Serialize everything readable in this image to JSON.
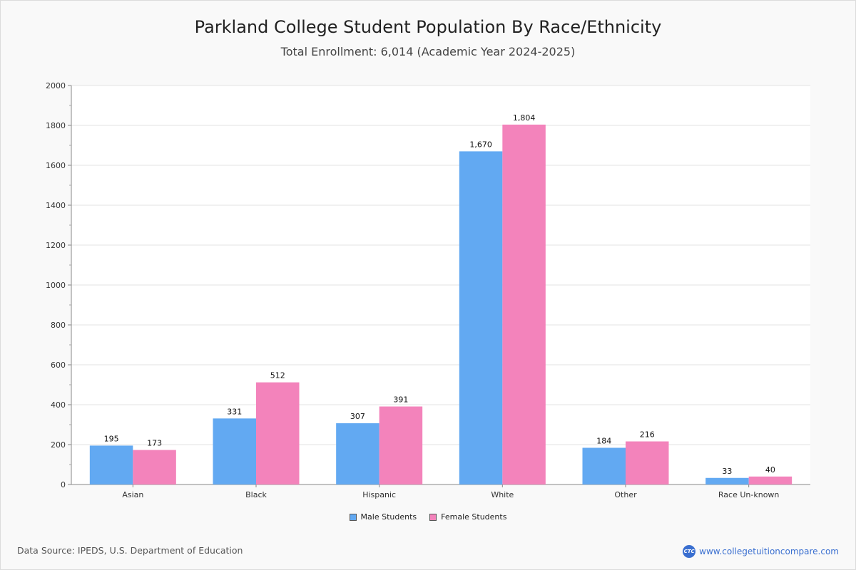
{
  "chart_data": {
    "type": "bar",
    "title": "Parkland College Student Population By Race/Ethnicity",
    "subtitle": "Total Enrollment: 6,014 (Academic Year 2024-2025)",
    "categories": [
      "Asian",
      "Black",
      "Hispanic",
      "White",
      "Other",
      "Race Un-known"
    ],
    "series": [
      {
        "name": "Male Students",
        "color": "#62a9f2",
        "values": [
          195,
          331,
          307,
          1670,
          184,
          33
        ],
        "labels": [
          "195",
          "331",
          "307",
          "1,670",
          "184",
          "33"
        ]
      },
      {
        "name": "Female Students",
        "color": "#f383bb",
        "values": [
          173,
          512,
          391,
          1804,
          216,
          40
        ],
        "labels": [
          "173",
          "512",
          "391",
          "1,804",
          "216",
          "40"
        ]
      }
    ],
    "ylim": [
      0,
      2000
    ],
    "yticks": [
      0,
      200,
      400,
      600,
      800,
      1000,
      1200,
      1400,
      1600,
      1800,
      2000
    ],
    "xlabel": "",
    "ylabel": "",
    "grid": true,
    "legend": "bottom-center"
  },
  "footer": {
    "source": "Data Source: IPEDS, U.S. Department of Education",
    "brand_logo": "CTC",
    "brand_url": "www.collegetuitioncompare.com"
  }
}
